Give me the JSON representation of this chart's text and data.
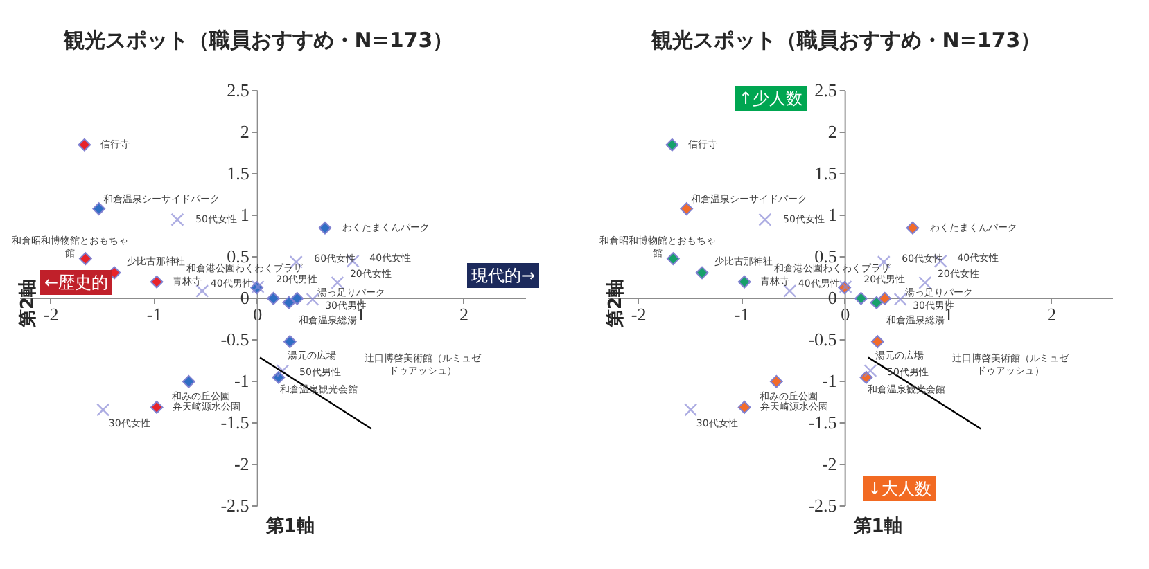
{
  "chart_data": [
    {
      "type": "scatter",
      "title": "観光スポット（職員おすすめ・N=173）",
      "xlabel": "第1軸",
      "ylabel": "第2軸",
      "xlim": [
        -2.3,
        2.6
      ],
      "ylim": [
        -2.5,
        2.5
      ],
      "xticks": [
        -2,
        -1,
        0,
        1,
        2
      ],
      "yticks": [
        -2.5,
        -2,
        -1.5,
        -1,
        -0.5,
        0,
        0.5,
        1,
        1.5,
        2,
        2.5
      ],
      "grid": false,
      "series": [
        {
          "type": "scatter",
          "marker": "diamond",
          "color": "#e8232a",
          "x": [
            -1.67,
            -1.66,
            -1.38,
            -0.97,
            -0.97
          ],
          "values": [
            1.84,
            0.47,
            0.3,
            0.19,
            -1.32
          ]
        },
        {
          "type": "scatter",
          "marker": "diamond",
          "color": "#2f6ec4",
          "x": [
            -1.53,
            0,
            0.16,
            0.31,
            0.39,
            0.66,
            0.32,
            0.21,
            -0.66
          ],
          "values": [
            1.07,
            0.12,
            -0.01,
            -0.06,
            -0.01,
            0.84,
            -0.53,
            -0.96,
            -1.01
          ]
        },
        {
          "type": "scatter",
          "marker": "cross",
          "color": "#8a8ad6",
          "x": [
            -0.77,
            -0.53,
            0.01,
            0.38,
            0.93,
            0.78,
            0.54,
            0.25,
            -1.49
          ],
          "values": [
            0.94,
            0.08,
            0.13,
            0.43,
            0.44,
            0.18,
            -0.02,
            -0.88,
            -1.35
          ]
        },
        {
          "type": "line",
          "color": "#000000",
          "x": [
            0.03,
            1.11
          ],
          "values": [
            -0.72,
            -1.58
          ]
        }
      ],
      "annotations": [
        {
          "text": "信行寺",
          "x": -1.67,
          "y": 1.84
        },
        {
          "text": "和倉温泉シーサイドパーク",
          "x": -1.53,
          "y": 1.07
        },
        {
          "text": "和倉昭和博物館とおもちゃ館",
          "x": -1.66,
          "y": 0.47
        },
        {
          "text": "少比古那神社",
          "x": -1.38,
          "y": 0.3
        },
        {
          "text": "青林寺",
          "x": -0.97,
          "y": 0.19
        },
        {
          "text": "和倉港公園わくわくプラザ",
          "x": 0,
          "y": 0.12
        },
        {
          "text": "湯っ足りパーク",
          "x": 0.39,
          "y": -0.01
        },
        {
          "text": "和倉温泉総湯",
          "x": 0.31,
          "y": -0.06
        },
        {
          "text": "わくたまくんパーク",
          "x": 0.66,
          "y": 0.84
        },
        {
          "text": "湯元の広場",
          "x": 0.32,
          "y": -0.53
        },
        {
          "text": "和倉温泉観光会館",
          "x": 0.21,
          "y": -0.96
        },
        {
          "text": "和みの丘公園",
          "x": -0.66,
          "y": -1.01
        },
        {
          "text": "弁天崎源水公園",
          "x": -0.97,
          "y": -1.32
        },
        "辻口博啓美術館（ルミュゼドゥアッシュ）",
        {
          "text": "50代女性",
          "x": -0.77,
          "y": 0.94
        },
        {
          "text": "40代男性",
          "x": -0.53,
          "y": 0.08
        },
        {
          "text": "20代男性",
          "x": 0.01,
          "y": 0.13
        },
        {
          "text": "60代女性",
          "x": 0.38,
          "y": 0.43
        },
        {
          "text": "40代女性",
          "x": 0.93,
          "y": 0.44
        },
        {
          "text": "20代女性",
          "x": 0.78,
          "y": 0.18
        },
        {
          "text": "30代男性",
          "x": 0.54,
          "y": -0.02
        },
        {
          "text": "50代男性",
          "x": 0.25,
          "y": -0.88
        },
        {
          "text": "30代女性",
          "x": -1.49,
          "y": -1.35
        },
        "←歴史的",
        "現代的→"
      ]
    },
    {
      "type": "scatter",
      "title": "観光スポット（職員おすすめ・N=173）",
      "xlabel": "第1軸",
      "ylabel": "第2軸",
      "xlim": [
        -2.3,
        2.6
      ],
      "ylim": [
        -2.5,
        2.5
      ],
      "xticks": [
        -2,
        -1,
        0,
        1,
        2
      ],
      "yticks": [
        -2.5,
        -2,
        -1.5,
        -1,
        -0.5,
        0,
        0.5,
        1,
        1.5,
        2,
        2.5
      ],
      "grid": false,
      "series": [
        {
          "type": "scatter",
          "marker": "diamond",
          "color": "#16a06a",
          "x": [
            -1.67,
            -1.66,
            -1.38,
            -0.97,
            0.16,
            0.31
          ],
          "values": [
            1.84,
            0.47,
            0.3,
            0.19,
            -0.01,
            -0.06
          ]
        },
        {
          "type": "scatter",
          "marker": "diamond",
          "color": "#f26b2a",
          "x": [
            -1.53,
            0,
            0.39,
            0.66,
            0.32,
            0.21,
            -0.66,
            -0.97
          ],
          "values": [
            1.07,
            0.12,
            -0.01,
            0.84,
            -0.53,
            -0.96,
            -1.01,
            -1.32
          ]
        },
        {
          "type": "scatter",
          "marker": "cross",
          "color": "#8a8ad6",
          "x": [
            -0.77,
            -0.53,
            0.01,
            0.38,
            0.93,
            0.78,
            0.54,
            0.25,
            -1.49
          ],
          "values": [
            0.94,
            0.08,
            0.13,
            0.43,
            0.44,
            0.18,
            -0.02,
            -0.88,
            -1.35
          ]
        },
        {
          "type": "line",
          "color": "#000000",
          "x": [
            0.23,
            1.32
          ],
          "values": [
            -0.72,
            -1.58
          ]
        }
      ],
      "annotations": [
        {
          "text": "信行寺",
          "x": -1.67,
          "y": 1.84
        },
        {
          "text": "和倉温泉シーサイドパーク",
          "x": -1.53,
          "y": 1.07
        },
        {
          "text": "和倉昭和博物館とおもちゃ館",
          "x": -1.66,
          "y": 0.47
        },
        {
          "text": "少比古那神社",
          "x": -1.38,
          "y": 0.3
        },
        {
          "text": "青林寺",
          "x": -0.97,
          "y": 0.19
        },
        {
          "text": "和倉港公園わくわくプラザ",
          "x": 0,
          "y": 0.12
        },
        {
          "text": "湯っ足りパーク",
          "x": 0.39,
          "y": -0.01
        },
        {
          "text": "和倉温泉総湯",
          "x": 0.31,
          "y": -0.06
        },
        {
          "text": "わくたまくんパーク",
          "x": 0.66,
          "y": 0.84
        },
        {
          "text": "湯元の広場",
          "x": 0.32,
          "y": -0.53
        },
        {
          "text": "和倉温泉観光会館",
          "x": 0.21,
          "y": -0.96
        },
        {
          "text": "和みの丘公園",
          "x": -0.66,
          "y": -1.01
        },
        {
          "text": "弁天崎源水公園",
          "x": -0.97,
          "y": -1.32
        },
        "辻口博啓美術館（ルミュゼドゥアッシュ）",
        {
          "text": "50代女性",
          "x": -0.77,
          "y": 0.94
        },
        {
          "text": "40代男性",
          "x": -0.53,
          "y": 0.08
        },
        {
          "text": "20代男性",
          "x": 0.01,
          "y": 0.13
        },
        {
          "text": "60代女性",
          "x": 0.38,
          "y": 0.43
        },
        {
          "text": "40代女性",
          "x": 0.93,
          "y": 0.44
        },
        {
          "text": "20代女性",
          "x": 0.78,
          "y": 0.18
        },
        {
          "text": "30代男性",
          "x": 0.54,
          "y": -0.02
        },
        {
          "text": "50代男性",
          "x": 0.25,
          "y": -0.88
        },
        {
          "text": "30代女性",
          "x": -1.49,
          "y": -1.35
        },
        "↑少人数",
        "↓大人数"
      ]
    }
  ]
}
